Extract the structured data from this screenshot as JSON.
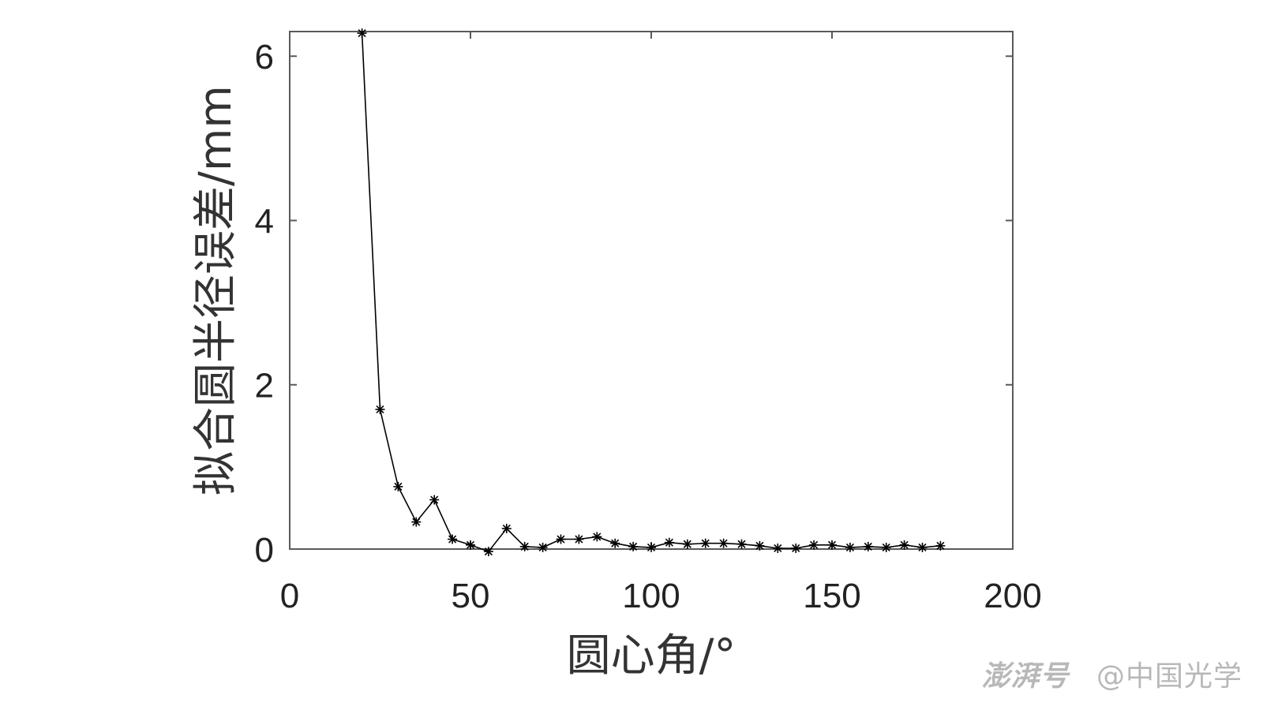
{
  "chart_data": {
    "type": "line",
    "xlabel": "圆心角/°",
    "ylabel": "拟合圆半径误差/mm",
    "xlim": [
      0,
      200
    ],
    "ylim": [
      0,
      6.3
    ],
    "xticks": [
      0,
      50,
      100,
      150,
      200
    ],
    "yticks": [
      0,
      2,
      4,
      6
    ],
    "grid": false,
    "marker": "asterisk",
    "line_color": "#000000",
    "x": [
      20,
      25,
      30,
      35,
      40,
      45,
      50,
      55,
      60,
      65,
      70,
      75,
      80,
      85,
      90,
      95,
      100,
      105,
      110,
      115,
      120,
      125,
      130,
      135,
      140,
      145,
      150,
      155,
      160,
      165,
      170,
      175,
      180
    ],
    "y": [
      6.28,
      1.7,
      0.76,
      0.33,
      0.6,
      0.12,
      0.05,
      -0.03,
      0.25,
      0.03,
      0.02,
      0.12,
      0.12,
      0.15,
      0.07,
      0.03,
      0.02,
      0.08,
      0.06,
      0.07,
      0.07,
      0.06,
      0.04,
      0.01,
      0.01,
      0.05,
      0.05,
      0.02,
      0.03,
      0.02,
      0.05,
      0.02,
      0.04
    ]
  },
  "watermark": {
    "brand": "澎湃号",
    "account": "@中国光学"
  }
}
